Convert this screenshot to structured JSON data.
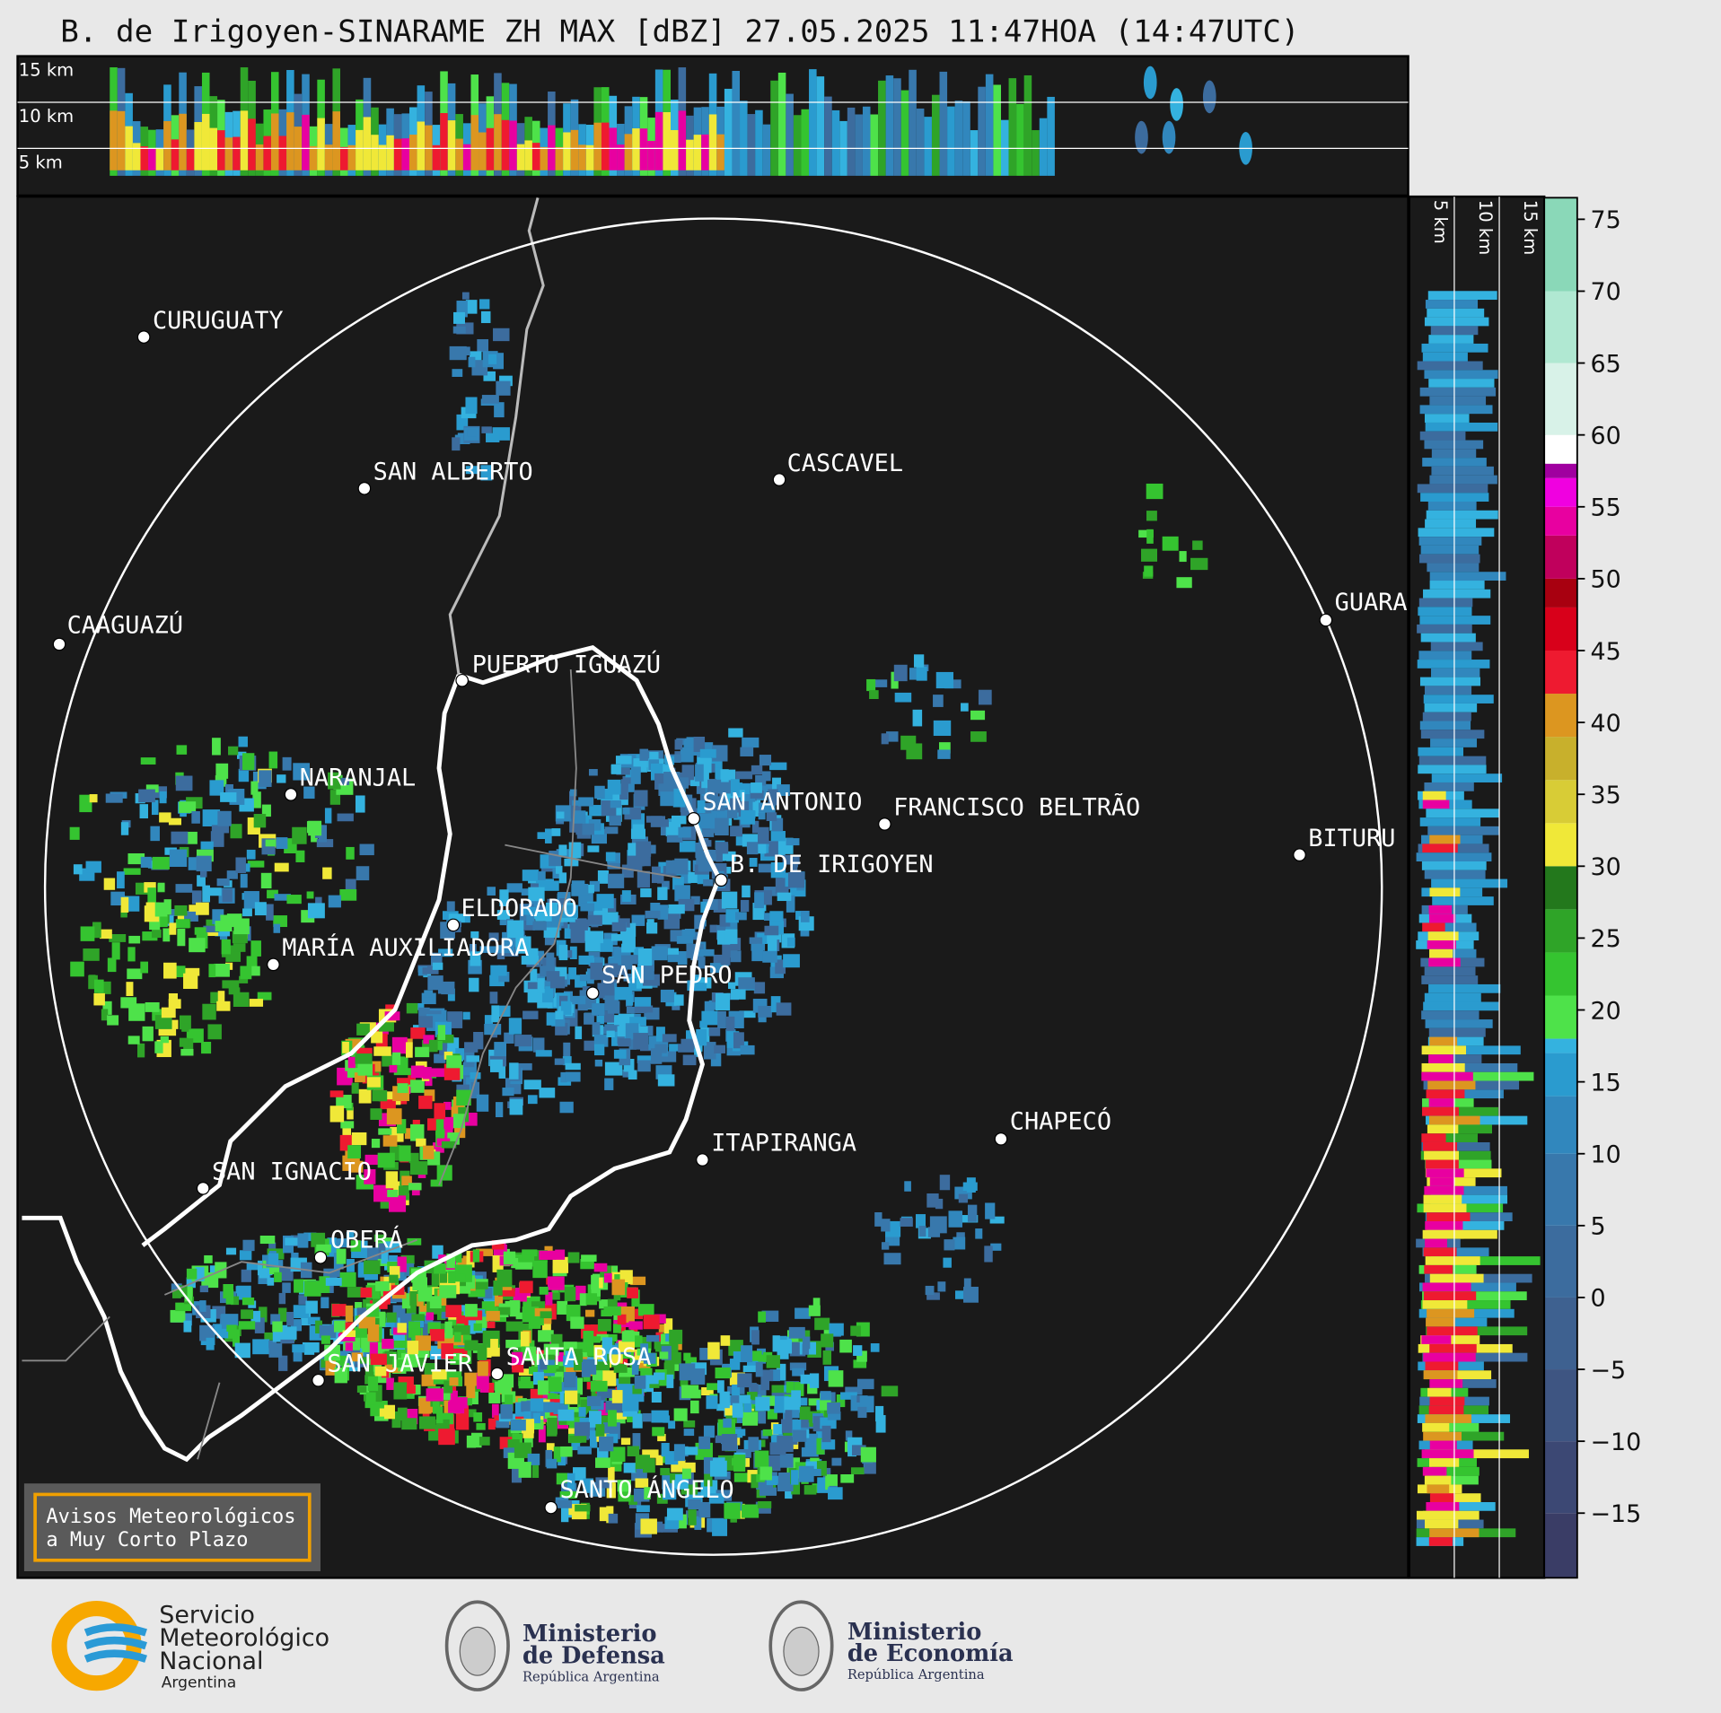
{
  "title": "B. de Irigoyen-SINARAME ZH MAX [dBZ] 27.05.2025 11:47HOA (14:47UTC)",
  "top_panel": {
    "heights": [
      "15 km",
      "10 km",
      "5 km"
    ]
  },
  "side_panel": {
    "heights": [
      "5 km",
      "10 km",
      "15 km"
    ]
  },
  "cities": [
    "CURUGUATY",
    "SAN ALBERTO",
    "CASCAVEL",
    "CAAGUAZÚ",
    "GUARA",
    "PUERTO IGUAZÚ",
    "NARANJAL",
    "SAN ANTONIO",
    "FRANCISCO BELTRÃO",
    "BITURU",
    "B. DE IRIGOYEN",
    "ELDORADO",
    "MARÍA AUXILIADORA",
    "SAN PEDRO",
    "CHAPECÓ",
    "ITAPIRANGA",
    "SAN IGNACIO",
    "OBERÁ",
    "SAN JAVIER",
    "SANTA ROSA",
    "SANTO ÁNGELO"
  ],
  "notice": [
    "Avisos Meteorológicos",
    "a Muy Corto Plazo"
  ],
  "colorbar": {
    "lim": [
      -19.5,
      76.5
    ],
    "ticks": [
      {
        "value": -15,
        "label": "−15"
      },
      {
        "value": -10,
        "label": "−10"
      },
      {
        "value": -5,
        "label": "−5"
      },
      0,
      5,
      10,
      15,
      20,
      25,
      30,
      35,
      40,
      45,
      50,
      55,
      60,
      65,
      70,
      75
    ],
    "bands": [
      {
        "from": -19.5,
        "color": "#3a3d66"
      },
      {
        "from": -15,
        "color": "#3c4874"
      },
      {
        "from": -10,
        "color": "#3e5582"
      },
      {
        "from": -5,
        "color": "#3e6190"
      },
      {
        "from": 0,
        "color": "#3c6c9e"
      },
      {
        "from": 5,
        "color": "#3878ac"
      },
      {
        "from": 10,
        "color": "#3187bd"
      },
      {
        "from": 14,
        "color": "#2a9bcf"
      },
      {
        "from": 17,
        "color": "#34b2df"
      },
      {
        "from": 18,
        "color": "#4ee24a"
      },
      {
        "from": 21,
        "color": "#35c430"
      },
      {
        "from": 24,
        "color": "#2fa428"
      },
      {
        "from": 27,
        "color": "#23781c"
      },
      {
        "from": 30,
        "color": "#f0e838"
      },
      {
        "from": 33,
        "color": "#d8cc36"
      },
      {
        "from": 36,
        "color": "#c8b02c"
      },
      {
        "from": 39,
        "color": "#dc9620"
      },
      {
        "from": 42,
        "color": "#ee1a30"
      },
      {
        "from": 45,
        "color": "#d8001a"
      },
      {
        "from": 48,
        "color": "#a80010"
      },
      {
        "from": 50,
        "color": "#c0005c"
      },
      {
        "from": 53,
        "color": "#e800a0"
      },
      {
        "from": 55,
        "color": "#f000e0"
      },
      {
        "from": 57,
        "color": "#a000a0"
      },
      {
        "from": 58,
        "color": "#ffffff"
      },
      {
        "from": 60,
        "color": "#d8f2e8"
      },
      {
        "from": 65,
        "color": "#b0e8d2"
      },
      {
        "from": 70,
        "color": "#8ad8b8"
      }
    ]
  },
  "footer": {
    "smn": [
      "Servicio",
      "Meteorológico",
      "Nacional",
      "Argentina"
    ],
    "defensa": [
      "Ministerio",
      "de Defensa",
      "República Argentina"
    ],
    "economia": [
      "Ministerio",
      "de Economía",
      "República Argentina"
    ]
  }
}
